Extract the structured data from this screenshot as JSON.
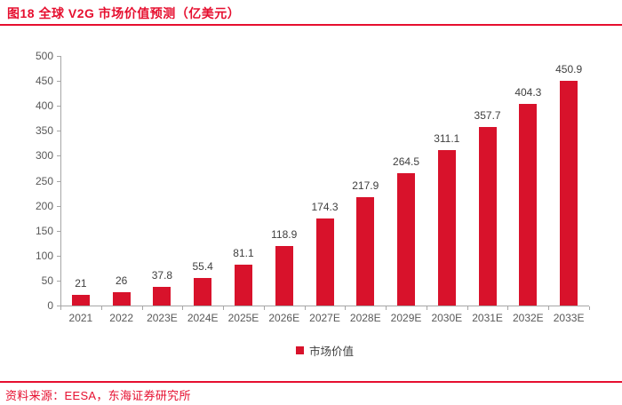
{
  "header": {
    "title": "图18 全球 V2G 市场价值预测（亿美元）"
  },
  "chart_data": {
    "type": "bar",
    "title": "图18 全球 V2G 市场价值预测（亿美元）",
    "categories": [
      "2021",
      "2022",
      "2023E",
      "2024E",
      "2025E",
      "2026E",
      "2027E",
      "2028E",
      "2029E",
      "2030E",
      "2031E",
      "2032E",
      "2033E"
    ],
    "series": [
      {
        "name": "市场价值",
        "values": [
          21,
          26,
          37.8,
          55.4,
          81.1,
          118.9,
          174.3,
          217.9,
          264.5,
          311.1,
          357.7,
          404.3,
          450.9
        ]
      }
    ],
    "value_labels": [
      "21",
      "26",
      "37.8",
      "55.4",
      "81.1",
      "118.9",
      "174.3",
      "217.9",
      "264.5",
      "311.1",
      "357.7",
      "404.3",
      "450.9"
    ],
    "xlabel": "",
    "ylabel": "",
    "ylim": [
      0,
      500
    ],
    "y_tick_step": 50,
    "y_tick_labels": [
      "0",
      "50",
      "100",
      "150",
      "200",
      "250",
      "300",
      "350",
      "400",
      "450",
      "500"
    ],
    "grid": false,
    "legend_position": "bottom"
  },
  "footer": {
    "source": "资料来源：EESA，东海证券研究所"
  },
  "colors": {
    "bar": "#D8122B",
    "accent": "#E60F2F",
    "axis": "#A6A6A6",
    "tick_label": "#595959",
    "value_label": "#3F3F3F",
    "legend_label": "#404040"
  }
}
